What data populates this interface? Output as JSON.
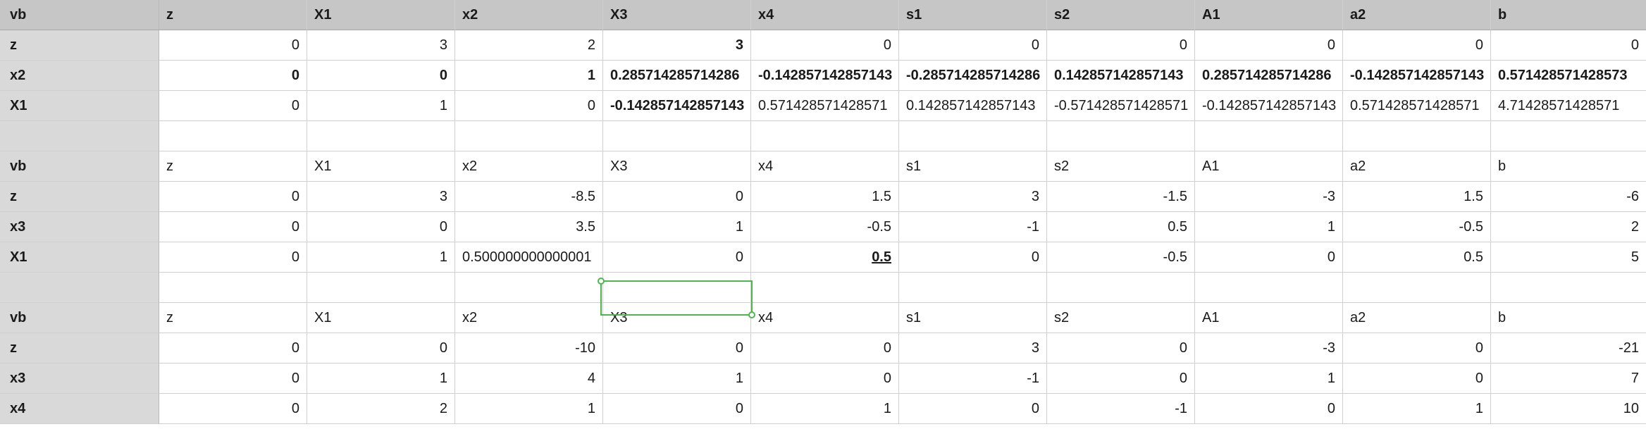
{
  "sheet": {
    "header": [
      "vb",
      "z",
      "X1",
      "x2",
      "X3",
      "x4",
      "s1",
      "s2",
      "A1",
      "a2",
      "b"
    ],
    "rows": [
      [
        "z",
        "0",
        "3",
        "2",
        "3",
        "0",
        "0",
        "0",
        "0",
        "0",
        "0"
      ],
      [
        "x2",
        "0",
        "0",
        "1",
        "0.285714285714286",
        "-0.142857142857143",
        "-0.285714285714286",
        "0.142857142857143",
        "0.285714285714286",
        "-0.142857142857143",
        "0.571428571428573"
      ],
      [
        "X1",
        "0",
        "1",
        "0",
        "-0.142857142857143",
        "0.571428571428571",
        "0.142857142857143",
        "-0.571428571428571",
        "-0.142857142857143",
        "0.571428571428571",
        "4.71428571428571"
      ],
      [
        "",
        "",
        "",
        "",
        "",
        "",
        "",
        "",
        "",
        "",
        ""
      ],
      [
        "vb",
        "z",
        "X1",
        "x2",
        "X3",
        "x4",
        "s1",
        "s2",
        "A1",
        "a2",
        "b"
      ],
      [
        "z",
        "0",
        "3",
        "-8.5",
        "0",
        "1.5",
        "3",
        "-1.5",
        "-3",
        "1.5",
        "-6"
      ],
      [
        "x3",
        "0",
        "0",
        "3.5",
        "1",
        "-0.5",
        "-1",
        "0.5",
        "1",
        "-0.5",
        "2"
      ],
      [
        "X1",
        "0",
        "1",
        "0.500000000000001",
        "0",
        "0.5",
        "0",
        "-0.5",
        "0",
        "0.5",
        "5"
      ],
      [
        "",
        "",
        "",
        "",
        "",
        "",
        "",
        "",
        "",
        "",
        ""
      ],
      [
        "vb",
        "z",
        "X1",
        "x2",
        "X3",
        "x4",
        "s1",
        "s2",
        "A1",
        "a2",
        "b"
      ],
      [
        "z",
        "0",
        "0",
        "-10",
        "0",
        "0",
        "3",
        "0",
        "-3",
        "0",
        "-21"
      ],
      [
        "x3",
        "0",
        "1",
        "4",
        "1",
        "0",
        "-1",
        "0",
        "1",
        "0",
        "7"
      ],
      [
        "x4",
        "0",
        "2",
        "1",
        "0",
        "1",
        "0",
        "-1",
        "0",
        "1",
        "10"
      ]
    ]
  },
  "colors": {
    "accent_selection": "#4cb84c",
    "header_bg": "#c6c6c6",
    "row_header_bg": "#d9d9d9"
  }
}
